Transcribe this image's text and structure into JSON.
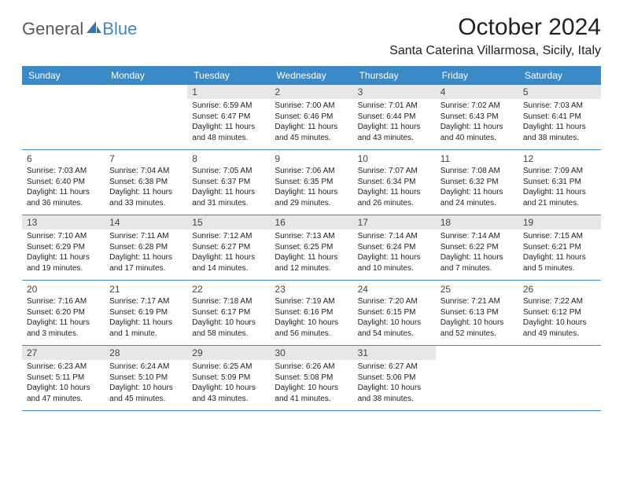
{
  "logo": {
    "general": "General",
    "blue": "Blue"
  },
  "title": "October 2024",
  "location": "Santa Caterina Villarmosa, Sicily, Italy",
  "weekdays": [
    "Sunday",
    "Monday",
    "Tuesday",
    "Wednesday",
    "Thursday",
    "Friday",
    "Saturday"
  ],
  "colors": {
    "header_bg": "#3a8ac8",
    "header_text": "#ffffff",
    "border": "#3a8ac8",
    "shade": "#e7e7e7",
    "text": "#222222",
    "logo_gray": "#5a5a5a",
    "logo_blue": "#3a8ac8"
  },
  "typography": {
    "title_fontsize": 30,
    "location_fontsize": 16,
    "weekday_fontsize": 12,
    "daynum_fontsize": 12,
    "body_fontsize": 10
  },
  "layout": {
    "columns": 7,
    "rows": 5,
    "first_day_col": 2,
    "shaded_rows": [
      0,
      2,
      4
    ]
  },
  "weeks": [
    [
      null,
      null,
      {
        "n": "1",
        "sr": "6:59 AM",
        "ss": "6:47 PM",
        "dl": "11 hours and 48 minutes."
      },
      {
        "n": "2",
        "sr": "7:00 AM",
        "ss": "6:46 PM",
        "dl": "11 hours and 45 minutes."
      },
      {
        "n": "3",
        "sr": "7:01 AM",
        "ss": "6:44 PM",
        "dl": "11 hours and 43 minutes."
      },
      {
        "n": "4",
        "sr": "7:02 AM",
        "ss": "6:43 PM",
        "dl": "11 hours and 40 minutes."
      },
      {
        "n": "5",
        "sr": "7:03 AM",
        "ss": "6:41 PM",
        "dl": "11 hours and 38 minutes."
      }
    ],
    [
      {
        "n": "6",
        "sr": "7:03 AM",
        "ss": "6:40 PM",
        "dl": "11 hours and 36 minutes."
      },
      {
        "n": "7",
        "sr": "7:04 AM",
        "ss": "6:38 PM",
        "dl": "11 hours and 33 minutes."
      },
      {
        "n": "8",
        "sr": "7:05 AM",
        "ss": "6:37 PM",
        "dl": "11 hours and 31 minutes."
      },
      {
        "n": "9",
        "sr": "7:06 AM",
        "ss": "6:35 PM",
        "dl": "11 hours and 29 minutes."
      },
      {
        "n": "10",
        "sr": "7:07 AM",
        "ss": "6:34 PM",
        "dl": "11 hours and 26 minutes."
      },
      {
        "n": "11",
        "sr": "7:08 AM",
        "ss": "6:32 PM",
        "dl": "11 hours and 24 minutes."
      },
      {
        "n": "12",
        "sr": "7:09 AM",
        "ss": "6:31 PM",
        "dl": "11 hours and 21 minutes."
      }
    ],
    [
      {
        "n": "13",
        "sr": "7:10 AM",
        "ss": "6:29 PM",
        "dl": "11 hours and 19 minutes."
      },
      {
        "n": "14",
        "sr": "7:11 AM",
        "ss": "6:28 PM",
        "dl": "11 hours and 17 minutes."
      },
      {
        "n": "15",
        "sr": "7:12 AM",
        "ss": "6:27 PM",
        "dl": "11 hours and 14 minutes."
      },
      {
        "n": "16",
        "sr": "7:13 AM",
        "ss": "6:25 PM",
        "dl": "11 hours and 12 minutes."
      },
      {
        "n": "17",
        "sr": "7:14 AM",
        "ss": "6:24 PM",
        "dl": "11 hours and 10 minutes."
      },
      {
        "n": "18",
        "sr": "7:14 AM",
        "ss": "6:22 PM",
        "dl": "11 hours and 7 minutes."
      },
      {
        "n": "19",
        "sr": "7:15 AM",
        "ss": "6:21 PM",
        "dl": "11 hours and 5 minutes."
      }
    ],
    [
      {
        "n": "20",
        "sr": "7:16 AM",
        "ss": "6:20 PM",
        "dl": "11 hours and 3 minutes."
      },
      {
        "n": "21",
        "sr": "7:17 AM",
        "ss": "6:19 PM",
        "dl": "11 hours and 1 minute."
      },
      {
        "n": "22",
        "sr": "7:18 AM",
        "ss": "6:17 PM",
        "dl": "10 hours and 58 minutes."
      },
      {
        "n": "23",
        "sr": "7:19 AM",
        "ss": "6:16 PM",
        "dl": "10 hours and 56 minutes."
      },
      {
        "n": "24",
        "sr": "7:20 AM",
        "ss": "6:15 PM",
        "dl": "10 hours and 54 minutes."
      },
      {
        "n": "25",
        "sr": "7:21 AM",
        "ss": "6:13 PM",
        "dl": "10 hours and 52 minutes."
      },
      {
        "n": "26",
        "sr": "7:22 AM",
        "ss": "6:12 PM",
        "dl": "10 hours and 49 minutes."
      }
    ],
    [
      {
        "n": "27",
        "sr": "6:23 AM",
        "ss": "5:11 PM",
        "dl": "10 hours and 47 minutes."
      },
      {
        "n": "28",
        "sr": "6:24 AM",
        "ss": "5:10 PM",
        "dl": "10 hours and 45 minutes."
      },
      {
        "n": "29",
        "sr": "6:25 AM",
        "ss": "5:09 PM",
        "dl": "10 hours and 43 minutes."
      },
      {
        "n": "30",
        "sr": "6:26 AM",
        "ss": "5:08 PM",
        "dl": "10 hours and 41 minutes."
      },
      {
        "n": "31",
        "sr": "6:27 AM",
        "ss": "5:06 PM",
        "dl": "10 hours and 38 minutes."
      },
      null,
      null
    ]
  ],
  "labels": {
    "sunrise": "Sunrise:",
    "sunset": "Sunset:",
    "daylight": "Daylight:"
  }
}
